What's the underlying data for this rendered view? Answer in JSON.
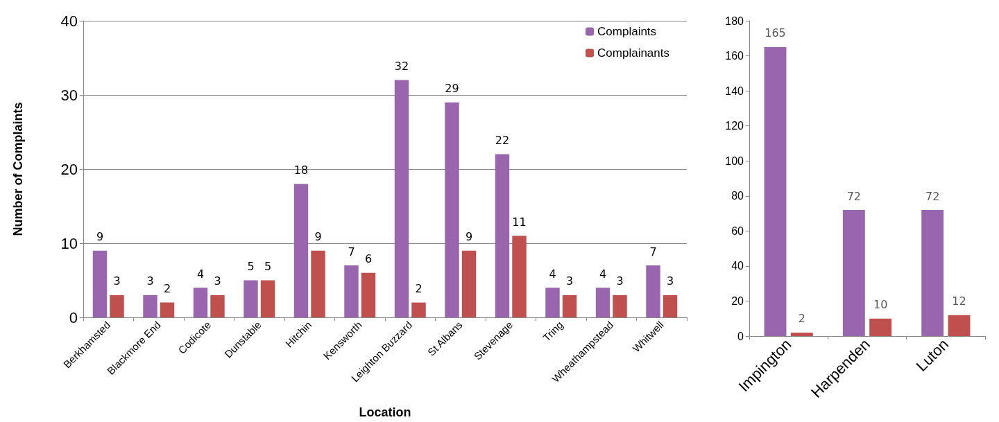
{
  "chart_data": [
    {
      "type": "bar",
      "xlabel": "Location",
      "ylabel": "Number of Complaints",
      "categories": [
        "Berkhamsted",
        "Blackmore End",
        "Codicote",
        "Dunstable",
        "Hitchin",
        "Kensworth",
        "Leighton Buzzard",
        "St Albans",
        "Stevenage",
        "Tring",
        "Wheathampstead",
        "Whitwell"
      ],
      "series": [
        {
          "name": "Complaints",
          "color": "#9966ae",
          "values": [
            9,
            3,
            4,
            5,
            18,
            7,
            32,
            29,
            22,
            4,
            4,
            7
          ]
        },
        {
          "name": "Complainants",
          "color": "#c0504d",
          "values": [
            3,
            2,
            3,
            5,
            9,
            6,
            2,
            9,
            11,
            3,
            3,
            3
          ]
        }
      ],
      "ylim": [
        0,
        40
      ],
      "yticks": [
        0,
        10,
        20,
        30,
        40
      ],
      "grid": "y",
      "legend": "top right",
      "data_labels": true
    },
    {
      "type": "bar",
      "categories": [
        "Impington",
        "Harpenden",
        "Luton"
      ],
      "series": [
        {
          "color": "#9966ae",
          "values": [
            165,
            72,
            72
          ]
        },
        {
          "color": "#c0504d",
          "values": [
            2,
            10,
            12
          ]
        }
      ],
      "ylim": [
        0,
        180
      ],
      "yticks": [
        0,
        20,
        40,
        60,
        80,
        100,
        120,
        140,
        160,
        180
      ],
      "data_labels": true
    }
  ]
}
